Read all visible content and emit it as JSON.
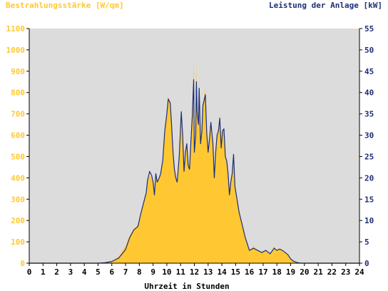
{
  "chart_data": {
    "type": "area",
    "left_axis_title": "Bestrahlungsstärke [W/qm]",
    "right_axis_title": "Leistung der Anlage [kW]",
    "xlabel": "Uhrzeit in Stunden",
    "x_ticks": [
      "0",
      "1",
      "2",
      "3",
      "4",
      "5",
      "6",
      "7",
      "8",
      "9",
      "10",
      "11",
      "12",
      "13",
      "14",
      "15",
      "16",
      "17",
      "18",
      "19",
      "20",
      "21",
      "22",
      "23",
      "24"
    ],
    "y_left_ticks": [
      "0",
      "100",
      "200",
      "300",
      "400",
      "500",
      "600",
      "700",
      "800",
      "900",
      "1000",
      "1100"
    ],
    "y_right_ticks": [
      "0",
      "5",
      "10",
      "15",
      "20",
      "25",
      "30",
      "35",
      "40",
      "45",
      "50",
      "55"
    ],
    "xlim": [
      0,
      24
    ],
    "ylim_left": [
      0,
      1100
    ],
    "ylim_right": [
      0,
      55
    ],
    "grid": false,
    "colors": {
      "plot_background": "#dcdcdc",
      "irradiance_fill": "#ffc832",
      "power_line": "#1e2e78",
      "left_axis_text": "#ffc832",
      "right_axis_text": "#1e2e78",
      "axis_text": "#000000"
    },
    "series": [
      {
        "role": "irradiance",
        "axis": "left",
        "unit": "W/qm",
        "x": [
          5.0,
          5.5,
          6.0,
          6.5,
          7.0,
          7.3,
          7.6,
          7.9,
          8.1,
          8.3,
          8.5,
          8.6,
          8.75,
          8.9,
          9.0,
          9.1,
          9.2,
          9.3,
          9.45,
          9.55,
          9.7,
          9.85,
          10.0,
          10.1,
          10.25,
          10.35,
          10.45,
          10.55,
          10.65,
          10.75,
          10.9,
          11.05,
          11.15,
          11.25,
          11.35,
          11.45,
          11.55,
          11.65,
          11.75,
          11.85,
          11.95,
          12.0,
          12.1,
          12.15,
          12.2,
          12.3,
          12.35,
          12.45,
          12.55,
          12.62,
          12.7,
          12.8,
          12.9,
          13.0,
          13.1,
          13.2,
          13.35,
          13.45,
          13.55,
          13.65,
          13.75,
          13.85,
          13.95,
          14.05,
          14.15,
          14.25,
          14.35,
          14.45,
          14.55,
          14.65,
          14.75,
          14.85,
          14.95,
          15.1,
          15.25,
          15.4,
          15.55,
          15.7,
          15.85,
          16.0,
          16.3,
          16.6,
          16.9,
          17.2,
          17.5,
          17.8,
          18.0,
          18.2,
          18.4,
          18.6,
          18.8,
          19.0,
          19.2,
          19.5,
          19.8,
          20.0
        ],
        "y": [
          0,
          2,
          10,
          30,
          80,
          130,
          160,
          180,
          240,
          280,
          330,
          390,
          410,
          400,
          380,
          320,
          410,
          380,
          400,
          420,
          480,
          620,
          690,
          780,
          760,
          650,
          520,
          440,
          400,
          380,
          500,
          720,
          620,
          430,
          520,
          560,
          460,
          440,
          580,
          700,
          960,
          520,
          600,
          940,
          720,
          650,
          860,
          560,
          620,
          740,
          780,
          820,
          620,
          520,
          580,
          660,
          560,
          400,
          520,
          600,
          620,
          700,
          540,
          620,
          640,
          500,
          480,
          420,
          320,
          380,
          420,
          520,
          360,
          300,
          240,
          200,
          160,
          120,
          90,
          60,
          80,
          60,
          50,
          60,
          40,
          80,
          60,
          70,
          60,
          50,
          40,
          20,
          10,
          2,
          0,
          0
        ]
      },
      {
        "role": "power",
        "axis": "right",
        "unit": "kW",
        "x": [
          5.0,
          5.5,
          6.0,
          6.5,
          7.0,
          7.3,
          7.6,
          7.9,
          8.1,
          8.3,
          8.5,
          8.6,
          8.75,
          8.9,
          9.0,
          9.1,
          9.2,
          9.3,
          9.45,
          9.55,
          9.7,
          9.85,
          10.0,
          10.1,
          10.25,
          10.35,
          10.45,
          10.55,
          10.65,
          10.75,
          10.9,
          11.05,
          11.15,
          11.25,
          11.35,
          11.45,
          11.55,
          11.65,
          11.75,
          11.85,
          11.95,
          12.0,
          12.1,
          12.15,
          12.2,
          12.3,
          12.35,
          12.45,
          12.55,
          12.62,
          12.7,
          12.8,
          12.9,
          13.0,
          13.1,
          13.2,
          13.35,
          13.45,
          13.55,
          13.65,
          13.75,
          13.85,
          13.95,
          14.05,
          14.15,
          14.25,
          14.35,
          14.45,
          14.55,
          14.65,
          14.75,
          14.85,
          14.95,
          15.1,
          15.25,
          15.4,
          15.55,
          15.7,
          15.85,
          16.0,
          16.3,
          16.6,
          16.9,
          17.2,
          17.5,
          17.8,
          18.0,
          18.2,
          18.4,
          18.6,
          18.8,
          19.0,
          19.2,
          19.5,
          19.8,
          20.0
        ],
        "y": [
          0,
          0.1,
          0.4,
          1.2,
          3.2,
          6.0,
          7.8,
          8.6,
          11.5,
          14.0,
          16.5,
          19.5,
          21.5,
          20.5,
          19.0,
          16.0,
          21.0,
          19.0,
          20.0,
          21.0,
          24.0,
          31.0,
          35.0,
          38.5,
          37.5,
          32.0,
          26.0,
          22.0,
          20.0,
          19.0,
          25.0,
          35.5,
          30.0,
          21.5,
          26.0,
          28.0,
          23.0,
          22.0,
          28.5,
          34.5,
          43.0,
          26.0,
          30.0,
          42.5,
          35.5,
          32.5,
          41.0,
          28.0,
          31.0,
          37.0,
          38.0,
          39.5,
          30.5,
          26.0,
          29.0,
          33.0,
          28.0,
          20.0,
          26.0,
          30.0,
          31.0,
          34.0,
          27.0,
          31.0,
          31.5,
          25.0,
          24.0,
          21.0,
          16.0,
          19.0,
          21.0,
          25.5,
          18.0,
          15.0,
          12.0,
          10.0,
          8.0,
          6.0,
          4.5,
          3.0,
          3.5,
          3.0,
          2.5,
          3.0,
          2.2,
          3.5,
          3.0,
          3.3,
          3.0,
          2.5,
          2.0,
          1.0,
          0.5,
          0.1,
          0,
          0
        ]
      }
    ]
  }
}
